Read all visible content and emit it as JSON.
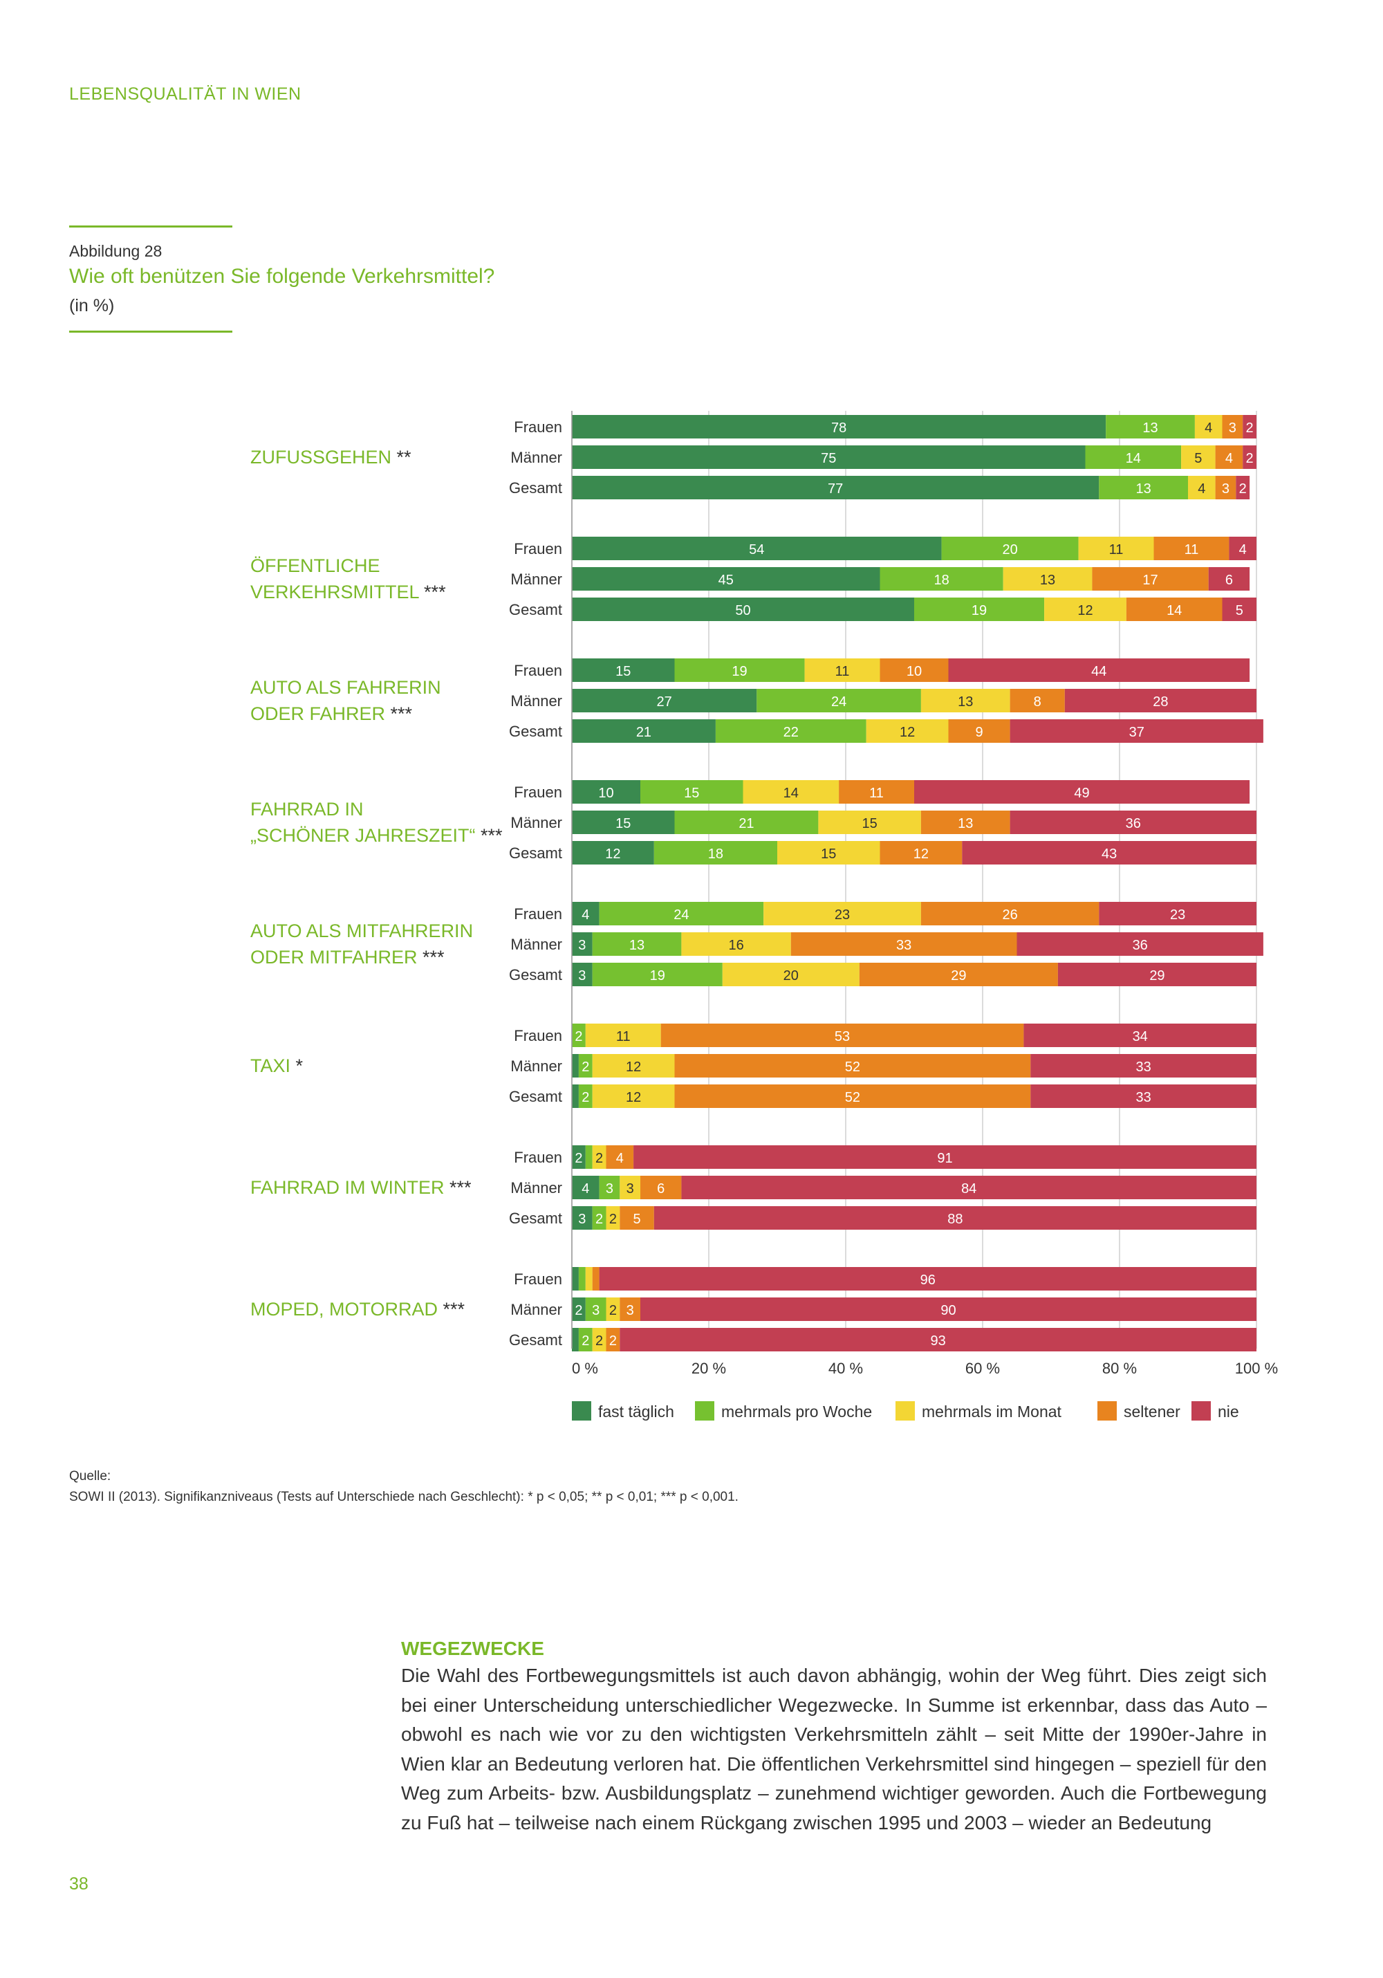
{
  "header": {
    "running_title": "LEBENSQUALITÄT IN WIEN"
  },
  "figure": {
    "number": "Abbildung 28",
    "title": "Wie oft benützen Sie folgende Verkehrsmittel?",
    "unit": "(in %)"
  },
  "colors": {
    "fast_taeglich": "#3a8a4f",
    "mehrmals_pro_woche": "#76c130",
    "mehrmals_im_monat": "#f3d634",
    "seltener": "#e8841f",
    "nie": "#c23f52",
    "accent": "#7ab829"
  },
  "chart_data": {
    "type": "bar",
    "orientation": "horizontal",
    "stacked": true,
    "xlim": [
      0,
      100
    ],
    "xticks": [
      "0 %",
      "20 %",
      "40 %",
      "60 %",
      "80 %",
      "100 %"
    ],
    "grid": true,
    "legend_position": "bottom",
    "legend": [
      "fast täglich",
      "mehrmals pro Woche",
      "mehrmals im Monat",
      "seltener",
      "nie"
    ],
    "row_labels": [
      "Frauen",
      "Männer",
      "Gesamt"
    ],
    "groups": [
      {
        "label_lines": [
          "ZUFUSSGEHEN **"
        ],
        "rows": [
          [
            78,
            13,
            4,
            3,
            2
          ],
          [
            75,
            14,
            5,
            4,
            2
          ],
          [
            77,
            13,
            4,
            3,
            2
          ]
        ]
      },
      {
        "label_lines": [
          "ÖFFENTLICHE",
          "VERKEHRSMITTEL ***"
        ],
        "rows": [
          [
            54,
            20,
            11,
            11,
            4
          ],
          [
            45,
            18,
            13,
            17,
            6
          ],
          [
            50,
            19,
            12,
            14,
            5
          ]
        ]
      },
      {
        "label_lines": [
          "AUTO ALS FAHRERIN",
          "ODER FAHRER ***"
        ],
        "rows": [
          [
            15,
            19,
            11,
            10,
            44
          ],
          [
            27,
            24,
            13,
            8,
            28
          ],
          [
            21,
            22,
            12,
            9,
            37
          ]
        ]
      },
      {
        "label_lines": [
          "FAHRRAD IN",
          "„SCHÖNER JAHRESZEIT“ ***"
        ],
        "rows": [
          [
            10,
            15,
            14,
            11,
            49
          ],
          [
            15,
            21,
            15,
            13,
            36
          ],
          [
            12,
            18,
            15,
            12,
            43
          ]
        ]
      },
      {
        "label_lines": [
          "AUTO ALS MITFAHRERIN",
          "ODER MITFAHRER ***"
        ],
        "rows": [
          [
            4,
            24,
            23,
            26,
            23
          ],
          [
            3,
            13,
            16,
            33,
            36
          ],
          [
            3,
            19,
            20,
            29,
            29
          ]
        ]
      },
      {
        "label_lines": [
          "TAXI *"
        ],
        "rows": [
          [
            0,
            2,
            11,
            53,
            34
          ],
          [
            1,
            2,
            12,
            52,
            33
          ],
          [
            1,
            2,
            12,
            52,
            33
          ]
        ]
      },
      {
        "label_lines": [
          "FAHRRAD IM WINTER ***"
        ],
        "rows": [
          [
            2,
            1,
            2,
            4,
            91
          ],
          [
            4,
            3,
            3,
            6,
            84
          ],
          [
            3,
            2,
            2,
            5,
            88
          ]
        ]
      },
      {
        "label_lines": [
          "MOPED, MOTORRAD ***"
        ],
        "rows": [
          [
            1,
            1,
            1,
            1,
            96
          ],
          [
            2,
            3,
            2,
            3,
            90
          ],
          [
            1,
            2,
            2,
            2,
            93
          ]
        ]
      }
    ],
    "labels": [
      [
        [
          "78",
          "13",
          "4",
          "3",
          "2"
        ],
        [
          "75",
          "14",
          "5",
          "4",
          "2"
        ],
        [
          "77",
          "13",
          "4",
          "3",
          "2"
        ]
      ],
      [
        [
          "54",
          "20",
          "11",
          "11",
          "4"
        ],
        [
          "45",
          "18",
          "13",
          "17",
          "6"
        ],
        [
          "50",
          "19",
          "12",
          "14",
          "5"
        ]
      ],
      [
        [
          "15",
          "19",
          "11",
          "10",
          "44"
        ],
        [
          "27",
          "24",
          "13",
          "8",
          "28"
        ],
        [
          "21",
          "22",
          "12",
          "9",
          "37"
        ]
      ],
      [
        [
          "10",
          "15",
          "14",
          "11",
          "49"
        ],
        [
          "15",
          "21",
          "15",
          "13",
          "36"
        ],
        [
          "12",
          "18",
          "15",
          "12",
          "43"
        ]
      ],
      [
        [
          "4",
          "24",
          "23",
          "26",
          "23"
        ],
        [
          "3",
          "13",
          "16",
          "33",
          "36"
        ],
        [
          "3",
          "19",
          "20",
          "29",
          "29"
        ]
      ],
      [
        [
          "",
          "2",
          "11",
          "53",
          "34"
        ],
        [
          "",
          "2",
          "12",
          "52",
          "33"
        ],
        [
          "",
          "2",
          "12",
          "52",
          "33"
        ]
      ],
      [
        [
          "2",
          "",
          "2",
          "4",
          "91"
        ],
        [
          "4",
          "3",
          "3",
          "6",
          "84"
        ],
        [
          "3",
          "2",
          "2",
          "5",
          "88"
        ]
      ],
      [
        [
          "",
          "",
          "",
          "",
          "96"
        ],
        [
          "2",
          "3",
          "2",
          "3",
          "90"
        ],
        [
          "",
          "2",
          "2",
          "2",
          "93"
        ]
      ]
    ]
  },
  "source": {
    "label": "Quelle:",
    "text": "SOWI II (2013). Signifikanzniveaus (Tests auf Unterschiede nach Geschlecht): * p < 0,05; ** p < 0,01; *** p < 0,001."
  },
  "section": {
    "heading": "WEGEZWECKE",
    "body": "Die Wahl des Fortbewegungsmittels ist auch davon abhängig, wohin der Weg führt. Dies zeigt sich bei einer Unterscheidung unterschiedlicher Wegezwecke. In Summe ist erkennbar, dass das Auto – obwohl es nach wie vor zu den wichtigsten Verkehrsmitteln zählt – seit Mitte der 1990er-Jahre in Wien klar an Bedeutung verloren hat. Die öffentlichen Verkehrsmittel sind hingegen – speziell für den Weg zum Arbeits- bzw. Ausbildungsplatz – zunehmend wichtiger geworden. Auch die Fortbewegung zu Fuß hat – teilweise nach einem Rückgang zwischen 1995 und 2003 – wieder an Bedeutung"
  },
  "page_number": "38"
}
